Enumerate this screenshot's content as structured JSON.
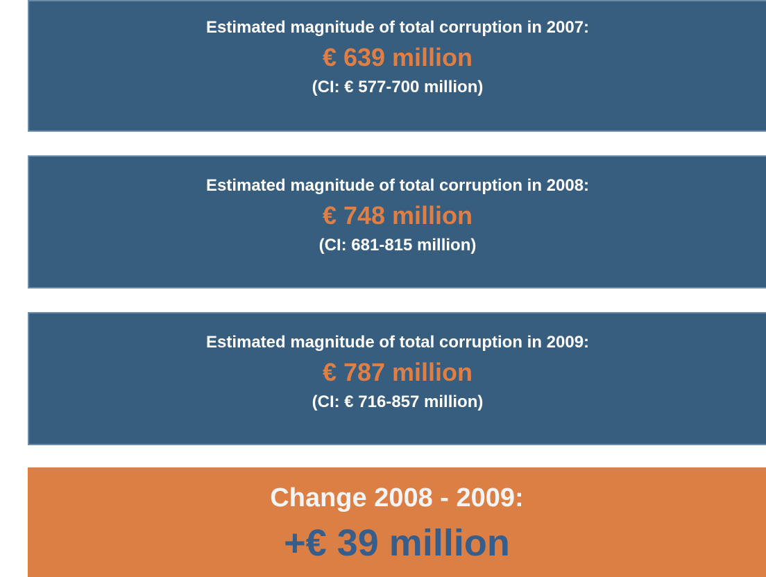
{
  "boxes": [
    {
      "heading": "Estimated magnitude of total corruption in 2007:",
      "value": "€ 639 million",
      "interval": "(CI: € 577-700 million)"
    },
    {
      "heading": "Estimated magnitude of total corruption in 2008:",
      "value": "€ 748 million",
      "interval": "(CI: 681-815 million)"
    },
    {
      "heading": "Estimated magnitude of total corruption in 2009:",
      "value": "€ 787 million",
      "interval": "(CI: € 716-857 million)"
    }
  ],
  "change": {
    "heading": "Change 2008 - 2009:",
    "value": "+€ 39 million"
  }
}
